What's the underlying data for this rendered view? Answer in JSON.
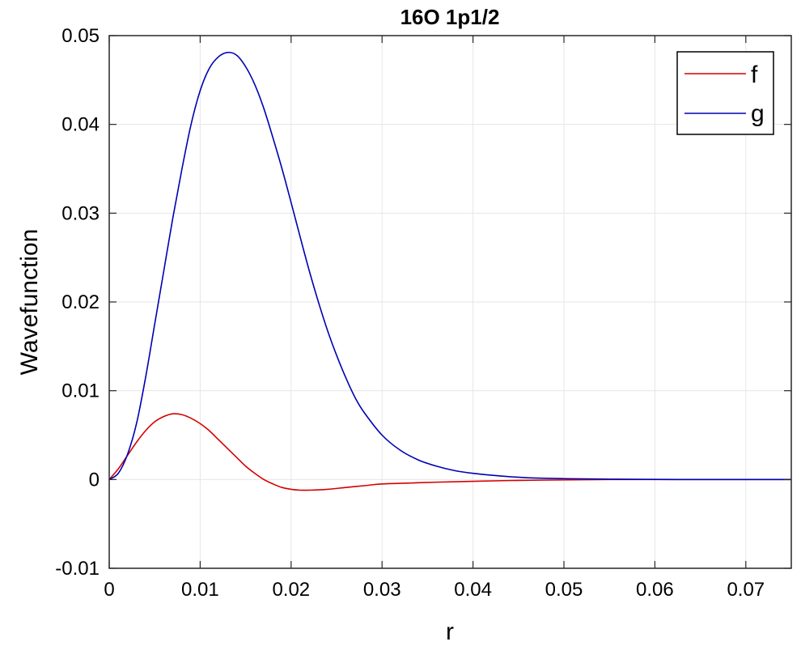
{
  "chart_data": {
    "type": "line",
    "title": "16O 1p1/2",
    "xlabel": "r",
    "ylabel": "Wavefunction",
    "xlim": [
      0,
      0.075
    ],
    "ylim": [
      -0.01,
      0.05
    ],
    "xticks": [
      0,
      0.01,
      0.02,
      0.03,
      0.04,
      0.05,
      0.06,
      0.07
    ],
    "xtick_labels": [
      "0",
      "0.01",
      "0.02",
      "0.03",
      "0.04",
      "0.05",
      "0.06",
      "0.07"
    ],
    "yticks": [
      -0.01,
      0,
      0.01,
      0.02,
      0.03,
      0.04,
      0.05
    ],
    "ytick_labels": [
      "-0.01",
      "0",
      "0.01",
      "0.02",
      "0.03",
      "0.04",
      "0.05"
    ],
    "grid": true,
    "legend_position": "top-right",
    "series": [
      {
        "name": "f",
        "color": "#d40000",
        "x": [
          0,
          0.001,
          0.002,
          0.003,
          0.004,
          0.005,
          0.006,
          0.007,
          0.008,
          0.009,
          0.01,
          0.011,
          0.012,
          0.013,
          0.014,
          0.015,
          0.016,
          0.017,
          0.018,
          0.019,
          0.02,
          0.021,
          0.022,
          0.024,
          0.026,
          0.028,
          0.03,
          0.033,
          0.036,
          0.04,
          0.045,
          0.05,
          0.055,
          0.06,
          0.065,
          0.07,
          0.075
        ],
        "y": [
          0,
          0.0012,
          0.0027,
          0.0042,
          0.0055,
          0.0065,
          0.0071,
          0.0074,
          0.0073,
          0.0069,
          0.0063,
          0.0055,
          0.0045,
          0.0035,
          0.0025,
          0.0015,
          0.0007,
          0.0,
          -0.0005,
          -0.0009,
          -0.0011,
          -0.0012,
          -0.0012,
          -0.0011,
          -0.0009,
          -0.0007,
          -0.0005,
          -0.0004,
          -0.0003,
          -0.0002,
          -0.0001,
          -5e-05,
          0,
          0,
          0,
          0,
          0
        ]
      },
      {
        "name": "g",
        "color": "#0000b4",
        "x": [
          0,
          0.001,
          0.002,
          0.003,
          0.004,
          0.005,
          0.006,
          0.007,
          0.008,
          0.009,
          0.01,
          0.011,
          0.012,
          0.013,
          0.014,
          0.015,
          0.016,
          0.017,
          0.018,
          0.019,
          0.02,
          0.021,
          0.022,
          0.023,
          0.024,
          0.025,
          0.026,
          0.027,
          0.028,
          0.03,
          0.032,
          0.034,
          0.036,
          0.038,
          0.04,
          0.043,
          0.046,
          0.05,
          0.055,
          0.06,
          0.065,
          0.07,
          0.075
        ],
        "y": [
          0,
          0.0007,
          0.0028,
          0.0063,
          0.0115,
          0.0175,
          0.0235,
          0.0295,
          0.035,
          0.04,
          0.0438,
          0.0463,
          0.0476,
          0.0481,
          0.0478,
          0.0465,
          0.0445,
          0.0418,
          0.0385,
          0.035,
          0.0312,
          0.0273,
          0.0235,
          0.02,
          0.0168,
          0.014,
          0.0115,
          0.0093,
          0.0076,
          0.005,
          0.0033,
          0.0022,
          0.0015,
          0.001,
          0.0007,
          0.0004,
          0.0002,
          0.0001,
          4e-05,
          1e-05,
          0,
          0,
          0
        ]
      }
    ]
  }
}
